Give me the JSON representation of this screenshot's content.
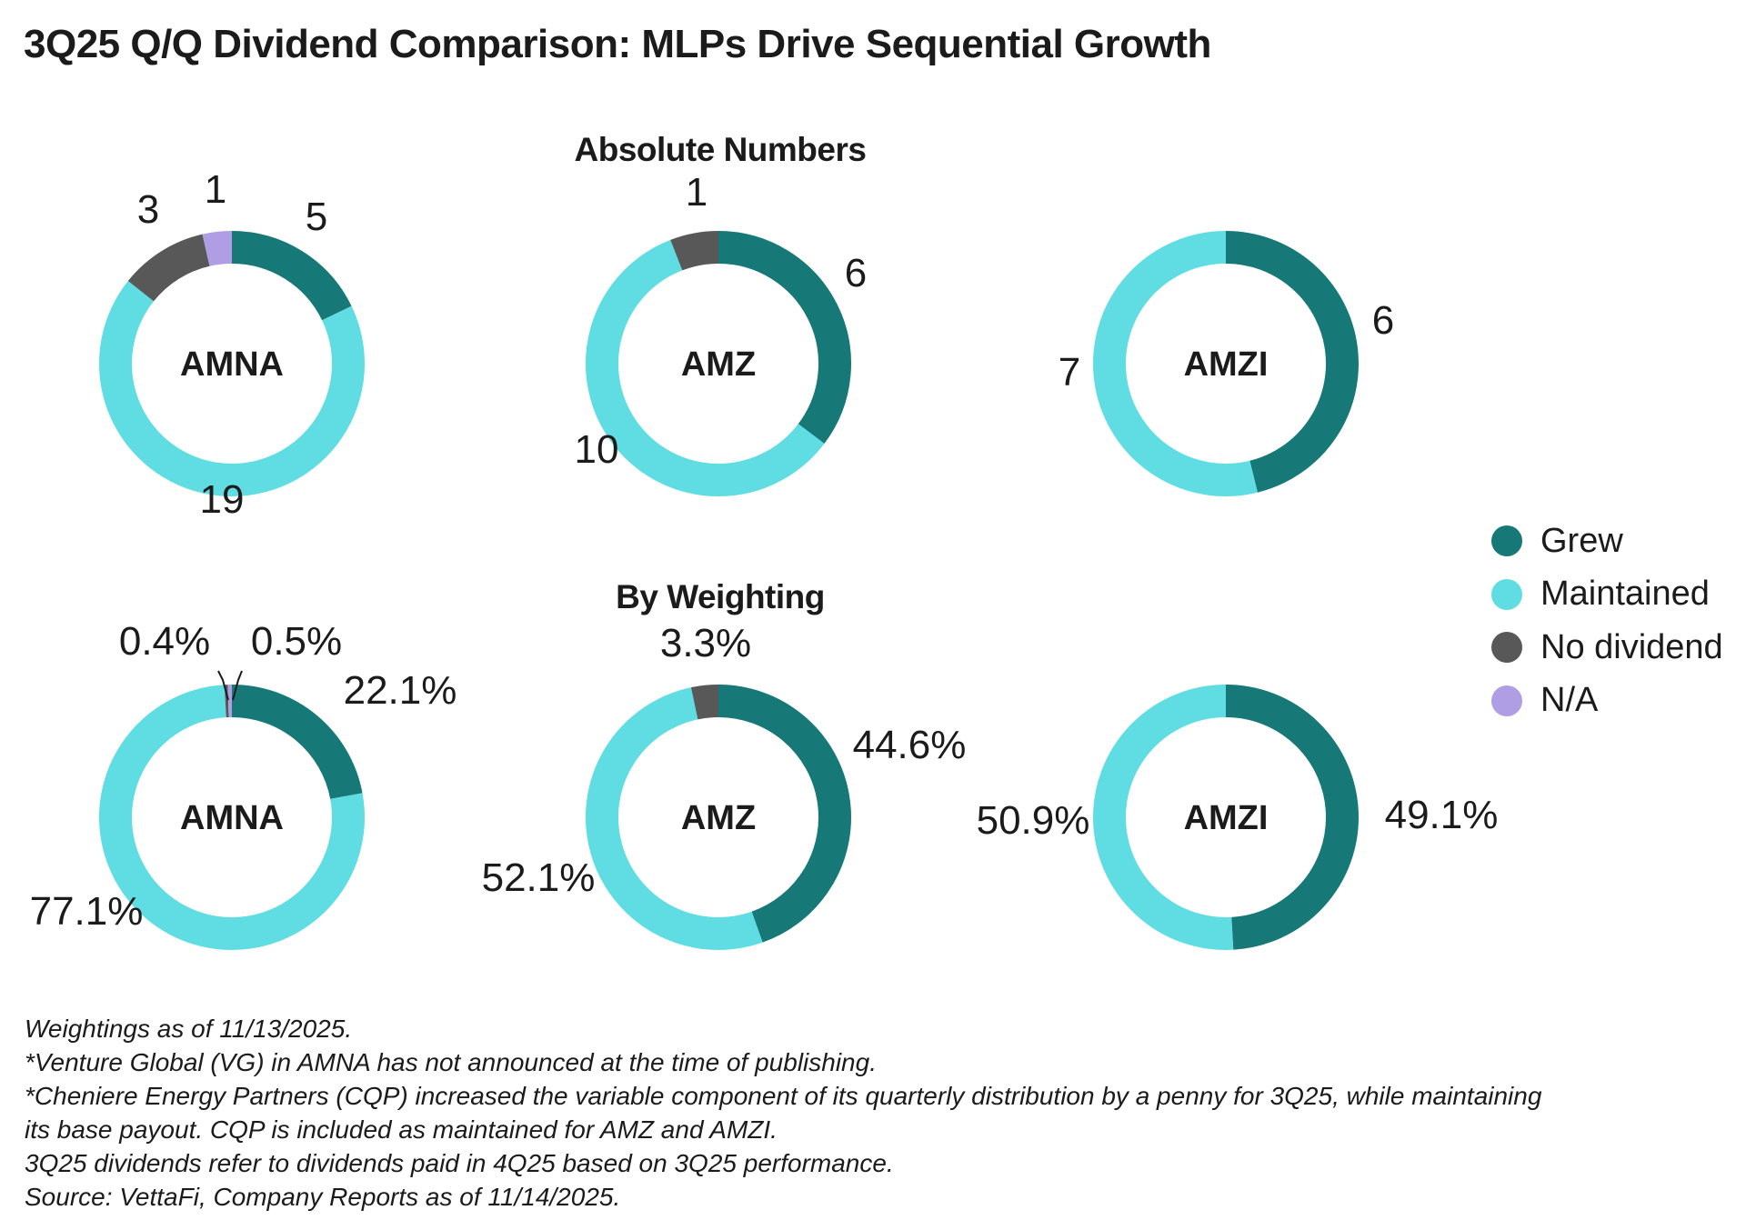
{
  "title": "3Q25 Q/Q Dividend Comparison: MLPs Drive Sequential Growth",
  "section_titles": {
    "absolute": "Absolute Numbers",
    "weighting": "By Weighting"
  },
  "legend": [
    {
      "label": "Grew",
      "color": "#177878"
    },
    {
      "label": "Maintained",
      "color": "#5fdde3"
    },
    {
      "label": "No dividend",
      "color": "#585858"
    },
    {
      "label": "N/A",
      "color": "#b09ee5"
    }
  ],
  "notes": [
    "Weightings as of 11/13/2025.",
    "*Venture Global (VG) in AMNA has not announced at the time of publishing.",
    "*Cheniere Energy Partners (CQP) increased the variable component of its quarterly distribution by a penny for 3Q25, while maintaining",
    "its base payout. CQP is included as maintained for AMZ and AMZI.",
    "3Q25 dividends refer to dividends paid in 4Q25 based on 3Q25 performance.",
    "Source: VettaFi, Company Reports as of 11/14/2025."
  ],
  "chart_data": [
    {
      "type": "pie",
      "group": "Absolute Numbers",
      "center_label": "AMNA",
      "categories": [
        "Grew",
        "Maintained",
        "No dividend",
        "N/A"
      ],
      "values": [
        5,
        19,
        3,
        1
      ],
      "data_labels": [
        "5",
        "19",
        "3",
        "1"
      ]
    },
    {
      "type": "pie",
      "group": "Absolute Numbers",
      "center_label": "AMZ",
      "categories": [
        "Grew",
        "Maintained",
        "No dividend"
      ],
      "values": [
        6,
        10,
        1
      ],
      "data_labels": [
        "6",
        "10",
        "1"
      ]
    },
    {
      "type": "pie",
      "group": "Absolute Numbers",
      "center_label": "AMZI",
      "categories": [
        "Grew",
        "Maintained"
      ],
      "values": [
        6,
        7
      ],
      "data_labels": [
        "6",
        "7"
      ]
    },
    {
      "type": "pie",
      "group": "By Weighting",
      "center_label": "AMNA",
      "categories": [
        "Grew",
        "Maintained",
        "No dividend",
        "N/A"
      ],
      "values": [
        22.1,
        77.1,
        0.4,
        0.5
      ],
      "data_labels": [
        "22.1%",
        "77.1%",
        "0.4%",
        "0.5%"
      ]
    },
    {
      "type": "pie",
      "group": "By Weighting",
      "center_label": "AMZ",
      "categories": [
        "Grew",
        "Maintained",
        "No dividend"
      ],
      "values": [
        44.6,
        52.1,
        3.3
      ],
      "data_labels": [
        "44.6%",
        "52.1%",
        "3.3%"
      ]
    },
    {
      "type": "pie",
      "group": "By Weighting",
      "center_label": "AMZI",
      "categories": [
        "Grew",
        "Maintained"
      ],
      "values": [
        49.1,
        50.9
      ],
      "data_labels": [
        "49.1%",
        "50.9%"
      ]
    }
  ]
}
